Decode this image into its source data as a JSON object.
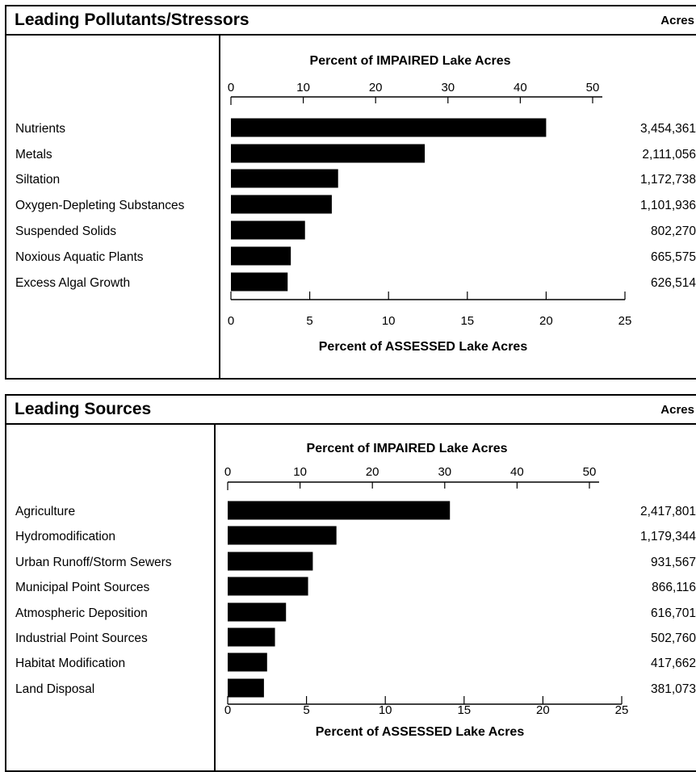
{
  "chart_data": [
    {
      "type": "bar",
      "title": "Leading Pollutants/Stressors",
      "units_label": "Acres",
      "top_axis_label": "Percent of IMPAIRED Lake Acres",
      "top_axis_ticks": [
        0,
        10,
        20,
        30,
        40,
        50
      ],
      "bottom_axis_label": "Percent of ASSESSED Lake Acres",
      "bottom_axis_ticks": [
        0,
        5,
        10,
        15,
        20,
        25
      ],
      "xlim": [
        0,
        25
      ],
      "categories": [
        "Nutrients",
        "Metals",
        "Siltation",
        "Oxygen-Depleting Substances",
        "Suspended Solids",
        "Noxious Aquatic Plants",
        "Excess Algal Growth"
      ],
      "values": [
        20.0,
        12.3,
        6.8,
        6.4,
        4.7,
        3.8,
        3.6
      ],
      "acres": [
        "3,454,361",
        "2,111,056",
        "1,172,738",
        "1,101,936",
        "802,270",
        "665,575",
        "626,514"
      ]
    },
    {
      "type": "bar",
      "title": "Leading Sources",
      "units_label": "Acres",
      "top_axis_label": "Percent of IMPAIRED Lake Acres",
      "top_axis_ticks": [
        0,
        10,
        20,
        30,
        40,
        50
      ],
      "bottom_axis_label": "Percent of ASSESSED Lake Acres",
      "bottom_axis_ticks": [
        0,
        5,
        10,
        15,
        20,
        25
      ],
      "xlim": [
        0,
        25
      ],
      "categories": [
        "Agriculture",
        "Hydromodification",
        "Urban Runoff/Storm Sewers",
        "Municipal Point Sources",
        "Atmospheric Deposition",
        "Industrial Point Sources",
        "Habitat Modification",
        "Land Disposal"
      ],
      "values": [
        14.1,
        6.9,
        5.4,
        5.1,
        3.7,
        3.0,
        2.5,
        2.3
      ],
      "acres": [
        "2,417,801",
        "1,179,344",
        "931,567",
        "866,116",
        "616,701",
        "502,760",
        "417,662",
        "381,073"
      ]
    }
  ]
}
